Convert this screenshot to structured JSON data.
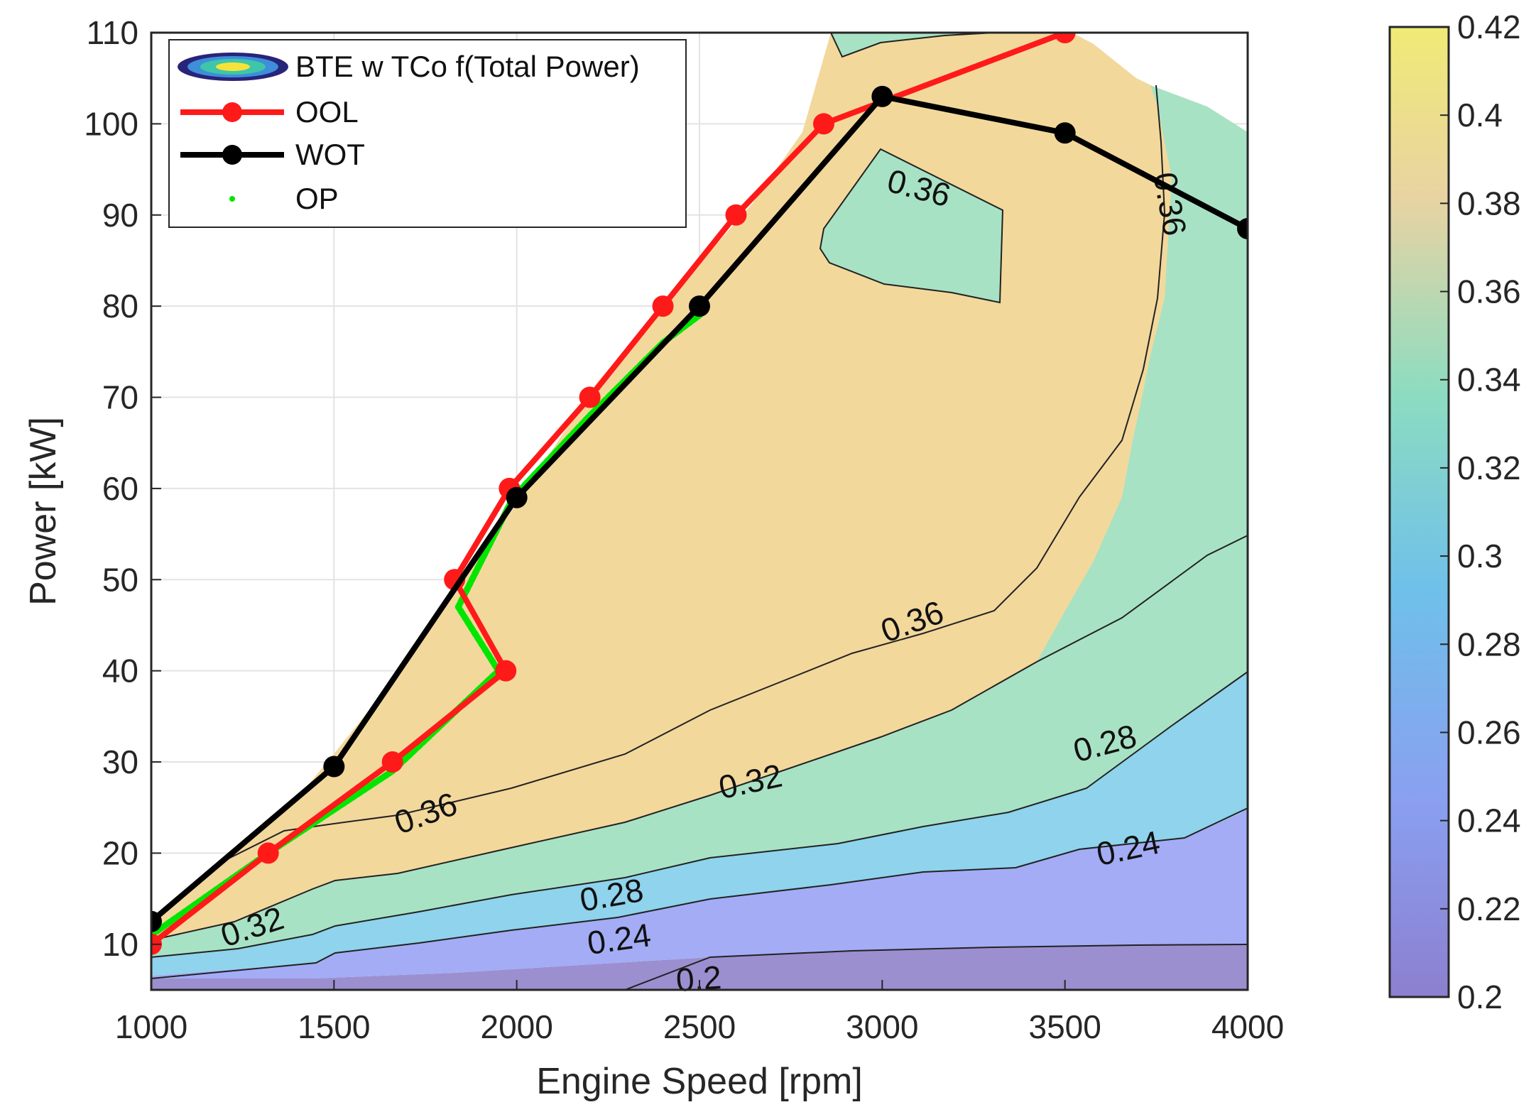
{
  "chart_data": {
    "type": "contour",
    "xlabel": "Engine Speed [rpm]",
    "ylabel": "Power [kW]",
    "xlim": [
      1000,
      4000
    ],
    "ylim": [
      5,
      110
    ],
    "xticks": [
      "1000",
      "1500",
      "2000",
      "2500",
      "3000",
      "3500",
      "4000"
    ],
    "yticks": [
      "10",
      "20",
      "30",
      "40",
      "50",
      "60",
      "70",
      "80",
      "90",
      "100",
      "110"
    ],
    "grid": true,
    "legend": {
      "placement": "top-left",
      "entries": [
        "BTE w TCo f(Total Power)",
        "OOL",
        "WOT",
        "OP"
      ]
    },
    "colorbar": {
      "range": [
        0.2,
        0.42
      ],
      "ticks": [
        "0.2",
        "0.22",
        "0.24",
        "0.26",
        "0.28",
        "0.3",
        "0.32",
        "0.34",
        "0.36",
        "0.38",
        "0.4",
        "0.42"
      ]
    },
    "contour_levels": [
      0.2,
      0.24,
      0.28,
      0.32,
      0.36
    ],
    "contour_labels": [
      "0.36",
      "0.36",
      "0.36",
      "0.32",
      "0.36",
      "0.32",
      "0.28",
      "0.28",
      "0.24",
      "0.24",
      "0.2"
    ],
    "series": [
      {
        "name": "OOL",
        "color": "#ff1a1a",
        "x": [
          1000,
          1320,
          1660,
          1970,
          1830,
          1980,
          2200,
          2400,
          2600,
          2840,
          3500
        ],
        "y": [
          10,
          20,
          30,
          40,
          50,
          60,
          70,
          80,
          90,
          100,
          110
        ]
      },
      {
        "name": "WOT",
        "color": "#000000",
        "x": [
          1000,
          1500,
          2000,
          2500,
          3000,
          3500,
          4000
        ],
        "y": [
          12.5,
          29.5,
          59,
          80,
          103,
          99,
          88.5
        ]
      },
      {
        "name": "OP",
        "color": "#00e600",
        "x": [
          1000,
          1320,
          1660,
          1950,
          1840,
          1990,
          2200,
          2400,
          2500
        ],
        "y": [
          11,
          20,
          29,
          40,
          47,
          59,
          68,
          76,
          79
        ]
      }
    ]
  },
  "colors": {
    "band_0_20_0_24": "#9b8fd0",
    "band_0_24_0_28": "#a3acf5",
    "band_0_28_0_32": "#8fd3ec",
    "band_0_32_0_36": "#a8e2c4",
    "band_0_36_0_40": "#f3d89c",
    "colormap": [
      "#8c7fcf",
      "#8a9ff0",
      "#6fc0ea",
      "#8cdcc1",
      "#d7d79f",
      "#f0ea76"
    ]
  }
}
